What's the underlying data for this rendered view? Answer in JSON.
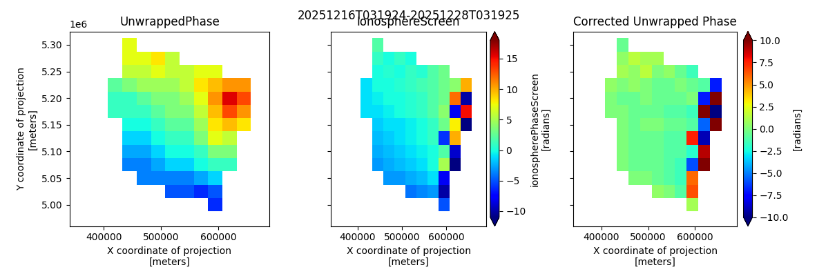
{
  "suptitle": "20251216T031924-20251228T031925",
  "chart_data": [
    {
      "type": "heatmap",
      "title": "UnwrappedPhase",
      "xlabel": "X coordinate of projection\n[meters]",
      "ylabel": "Y coordinate of projection\n[meters]",
      "y_offset_label": "1e6",
      "color": "jet",
      "xlim": [
        340000,
        690000
      ],
      "ylim": [
        4960000,
        5325000
      ],
      "xticks": [
        400000,
        500000,
        600000
      ],
      "yticks": [
        {
          "value": 5000000,
          "label": "5.00"
        },
        {
          "value": 5050000,
          "label": "5.05"
        },
        {
          "value": 5100000,
          "label": "5.10"
        },
        {
          "value": 5150000,
          "label": "5.15"
        },
        {
          "value": 5200000,
          "label": "5.20"
        },
        {
          "value": 5250000,
          "label": "5.25"
        },
        {
          "value": 5300000,
          "label": "5.30"
        }
      ],
      "x": [
        420000,
        445000,
        470000,
        495000,
        520000,
        545000,
        570000,
        595000,
        620000,
        645000,
        670000
      ],
      "y": [
        5300000,
        5275000,
        5250000,
        5225000,
        5200000,
        5175000,
        5150000,
        5125000,
        5100000,
        5075000,
        5050000,
        5025000,
        5000000
      ],
      "clim": [
        -6,
        6
      ],
      "cells": [
        [
          null,
          1.5,
          null,
          null,
          null,
          null,
          null,
          null,
          null,
          null,
          null
        ],
        [
          null,
          1.5,
          1.5,
          2.0,
          1.0,
          null,
          null,
          null,
          null,
          null,
          null
        ],
        [
          null,
          1.0,
          1.0,
          1.5,
          1.0,
          1.0,
          1.5,
          1.5,
          null,
          null,
          null
        ],
        [
          -0.5,
          0,
          0.5,
          0.5,
          0.5,
          1.0,
          2.0,
          2.5,
          3.0,
          3.0,
          null
        ],
        [
          -1,
          -1,
          -0.5,
          0,
          0,
          0.5,
          1.5,
          3.0,
          5.0,
          4.0,
          null
        ],
        [
          -1,
          -1,
          -1,
          -0.5,
          0,
          0,
          1.0,
          2.5,
          4.0,
          3.0,
          null
        ],
        [
          null,
          -1.5,
          -1.5,
          -1,
          -0.5,
          -0.5,
          0.5,
          2.0,
          2.5,
          2.0,
          null
        ],
        [
          null,
          -2,
          -2,
          -1.5,
          -1,
          -1,
          0,
          1.5,
          1.0,
          null,
          null
        ],
        [
          null,
          -2.5,
          -2.5,
          -2,
          -1.5,
          -1.5,
          -1,
          0,
          0,
          null,
          null
        ],
        [
          null,
          -3,
          -3,
          -2.5,
          -2,
          -2,
          -1.5,
          -1,
          -1,
          null,
          null
        ],
        [
          null,
          null,
          -3,
          -3,
          -3,
          -3,
          -2.5,
          -2,
          null,
          null,
          null
        ],
        [
          null,
          null,
          null,
          null,
          -3.5,
          -3.5,
          -4,
          -3.5,
          null,
          null,
          null
        ],
        [
          null,
          null,
          null,
          null,
          null,
          null,
          null,
          -4,
          null,
          null,
          null
        ]
      ]
    },
    {
      "type": "heatmap",
      "title": "IonosphereScreen",
      "xlabel": "X coordinate of projection\n[meters]",
      "color": "jet",
      "tick_labels": "x",
      "xlim": [
        340000,
        690000
      ],
      "ylim": [
        4960000,
        5325000
      ],
      "xticks": [
        400000,
        500000,
        600000
      ],
      "yticks": [
        5000000,
        5050000,
        5100000,
        5150000,
        5200000,
        5250000,
        5300000
      ],
      "x": [
        420000,
        445000,
        470000,
        495000,
        520000,
        545000,
        570000,
        595000,
        620000,
        645000,
        670000
      ],
      "y": [
        5300000,
        5275000,
        5250000,
        5225000,
        5200000,
        5175000,
        5150000,
        5125000,
        5100000,
        5075000,
        5050000,
        5025000,
        5000000
      ],
      "colorbar": {
        "label": "ionospherePhaseScreen\n[radians]",
        "clim": [
          -11,
          18
        ],
        "ticks": [
          {
            "value": -10,
            "label": "−10"
          },
          {
            "value": -5,
            "label": "−5"
          },
          0,
          5,
          10,
          15
        ]
      },
      "cells": [
        [
          null,
          2,
          null,
          null,
          null,
          null,
          null,
          null,
          null,
          null,
          null
        ],
        [
          null,
          1,
          0,
          1,
          0,
          null,
          null,
          null,
          null,
          null,
          null
        ],
        [
          null,
          0,
          0.5,
          0,
          1,
          0.5,
          2,
          3,
          null,
          null,
          null
        ],
        [
          -1,
          0,
          0,
          0.5,
          1,
          1.5,
          2,
          3,
          4,
          10,
          null
        ],
        [
          -1,
          -0.5,
          0,
          0,
          0.5,
          1,
          2,
          3,
          12,
          -10,
          null
        ],
        [
          -1,
          -1,
          -0.5,
          0,
          0.5,
          1,
          2,
          4,
          -8,
          15,
          null
        ],
        [
          null,
          -1.5,
          -1,
          -1,
          -0.5,
          0,
          1,
          3,
          8,
          -11,
          null
        ],
        [
          null,
          -2,
          -1.5,
          -1,
          -0.5,
          0,
          1,
          -6,
          10,
          null,
          null
        ],
        [
          null,
          -2.5,
          -2,
          -1.5,
          -1,
          -0.5,
          0,
          2,
          -9,
          null,
          null
        ],
        [
          null,
          -3,
          -2.5,
          -2,
          -1.5,
          -1,
          0,
          5,
          -11,
          null,
          null
        ],
        [
          null,
          null,
          -3,
          -3,
          -2.5,
          -2,
          -1,
          -8,
          null,
          null,
          null
        ],
        [
          null,
          null,
          null,
          null,
          -4,
          -3.5,
          -3,
          -10,
          null,
          null,
          null
        ],
        [
          null,
          null,
          null,
          null,
          null,
          null,
          null,
          -5,
          null,
          null,
          null
        ]
      ]
    },
    {
      "type": "heatmap",
      "title": "Corrected Unwrapped Phase",
      "xlabel": "X coordinate of projection\n[meters]",
      "color": "jet",
      "tick_labels": "x",
      "xlim": [
        340000,
        690000
      ],
      "ylim": [
        4960000,
        5325000
      ],
      "xticks": [
        400000,
        500000,
        600000
      ],
      "yticks": [
        5000000,
        5050000,
        5100000,
        5150000,
        5200000,
        5250000,
        5300000
      ],
      "x": [
        420000,
        445000,
        470000,
        495000,
        520000,
        545000,
        570000,
        595000,
        620000,
        645000,
        670000
      ],
      "y": [
        5300000,
        5275000,
        5250000,
        5225000,
        5200000,
        5175000,
        5150000,
        5125000,
        5100000,
        5075000,
        5050000,
        5025000,
        5000000
      ],
      "colorbar": {
        "label": "[radians]",
        "clim": [
          -10,
          10
        ],
        "ticks": [
          {
            "value": -10,
            "label": "−10.0"
          },
          {
            "value": -7.5,
            "label": "−7.5"
          },
          {
            "value": -5,
            "label": "−5.0"
          },
          {
            "value": -2.5,
            "label": "−2.5"
          },
          {
            "value": 0,
            "label": "0.0"
          },
          2.5,
          {
            "value": 5,
            "label": "5.0"
          },
          7.5,
          {
            "value": 10,
            "label": "10.0"
          }
        ]
      },
      "cells": [
        [
          null,
          -0.5,
          null,
          null,
          null,
          null,
          null,
          null,
          null,
          null,
          null
        ],
        [
          null,
          0.5,
          1.5,
          1,
          1,
          null,
          null,
          null,
          null,
          null,
          null
        ],
        [
          null,
          1,
          0.5,
          1.5,
          0,
          0.5,
          -0.5,
          -1.5,
          null,
          null,
          null
        ],
        [
          0.5,
          0,
          0.5,
          0,
          -0.5,
          -0.5,
          0,
          -0.5,
          -1,
          -7,
          null
        ],
        [
          0,
          -0.5,
          -0.5,
          0,
          -0.5,
          -0.5,
          -0.5,
          0,
          -7,
          14,
          null
        ],
        [
          0,
          0,
          -0.5,
          -0.5,
          -0.5,
          -1,
          -1,
          -1.5,
          12,
          -12,
          null
        ],
        [
          null,
          0,
          -0.5,
          0,
          0,
          -0.5,
          -0.5,
          -1,
          -5.5,
          13,
          null
        ],
        [
          null,
          0,
          -0.5,
          -0.5,
          -0.5,
          -1,
          -1,
          7.5,
          -9,
          null,
          null
        ],
        [
          null,
          0,
          -0.5,
          -0.5,
          -0.5,
          -1,
          -1,
          -2,
          9,
          null,
          null
        ],
        [
          null,
          0,
          -0.5,
          -0.5,
          -0.5,
          -1,
          -1.5,
          -6,
          10,
          null,
          null
        ],
        [
          null,
          null,
          0,
          0,
          -0.5,
          -1,
          -1.5,
          6,
          null,
          null,
          null
        ],
        [
          null,
          null,
          null,
          null,
          0.5,
          0,
          -1,
          6.5,
          null,
          null,
          null
        ],
        [
          null,
          null,
          null,
          null,
          null,
          null,
          null,
          1,
          null,
          null,
          null
        ]
      ]
    }
  ]
}
